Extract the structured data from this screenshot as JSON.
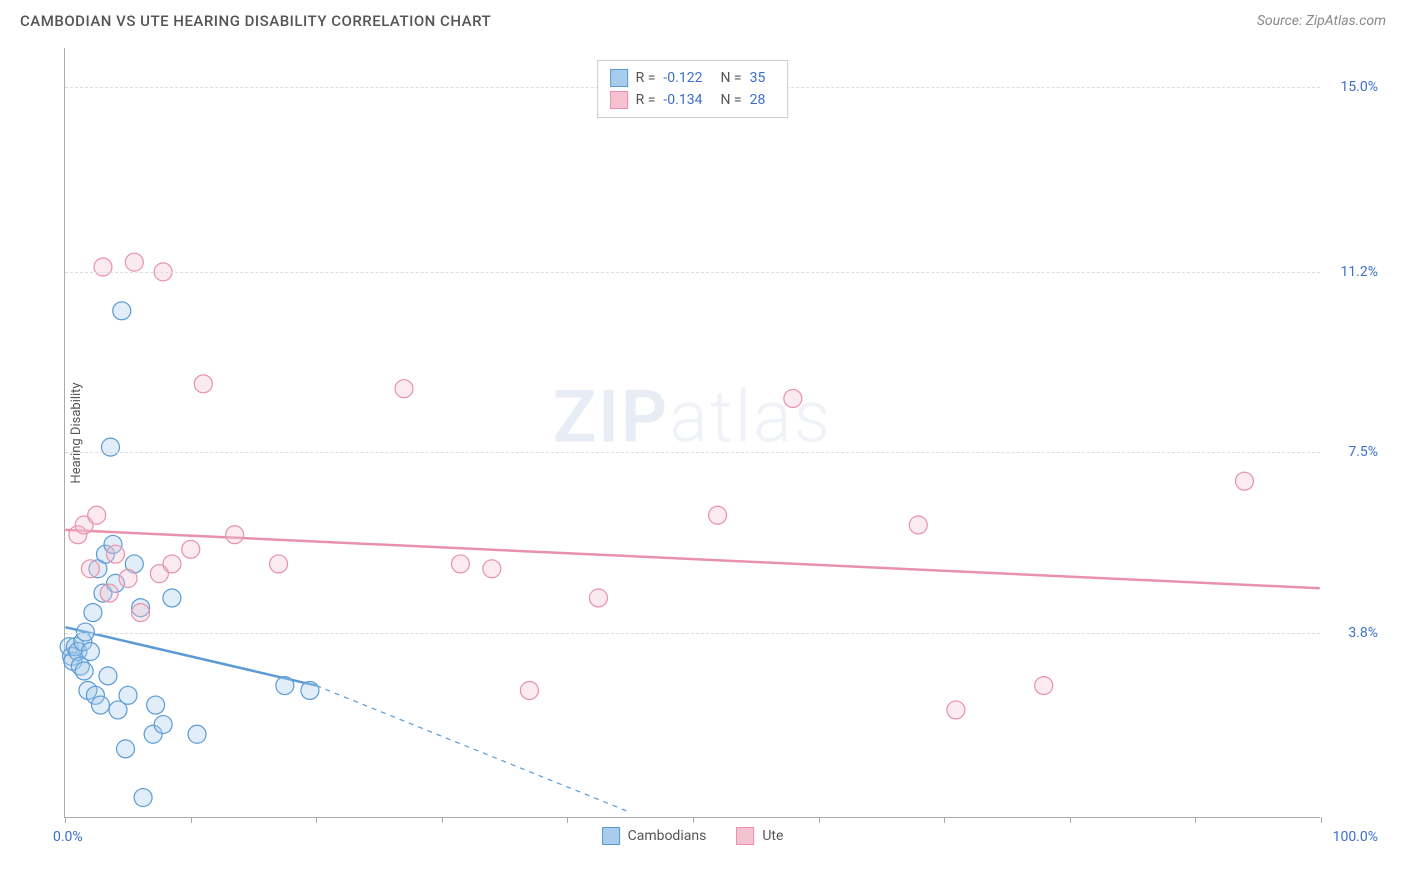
{
  "header": {
    "title": "CAMBODIAN VS UTE HEARING DISABILITY CORRELATION CHART",
    "source": "Source: ZipAtlas.com"
  },
  "watermark": {
    "bold": "ZIP",
    "light": "atlas"
  },
  "chart": {
    "type": "scatter",
    "yaxis_title": "Hearing Disability",
    "xlim": [
      0,
      100
    ],
    "ylim": [
      0,
      15.8
    ],
    "xtick_positions": [
      0,
      10,
      20,
      30,
      40,
      50,
      60,
      70,
      80,
      90,
      100
    ],
    "xlabel_min": "0.0%",
    "xlabel_max": "100.0%",
    "yticks": [
      {
        "value": 3.8,
        "label": "3.8%"
      },
      {
        "value": 7.5,
        "label": "7.5%"
      },
      {
        "value": 11.2,
        "label": "11.2%"
      },
      {
        "value": 15.0,
        "label": "15.0%"
      }
    ],
    "background_color": "#ffffff",
    "grid_color": "#dddddd",
    "marker_radius": 9,
    "marker_stroke_width": 1.2,
    "marker_fill_opacity": 0.35,
    "trend_line_width": 2.5,
    "series": [
      {
        "name": "Cambodians",
        "color": "#5b9bd5",
        "fill": "#a8cceb",
        "R": "-0.122",
        "N": "35",
        "trend": {
          "x1": 0,
          "y1": 3.9,
          "x2": 20,
          "y2": 2.7,
          "dash_extend_x": 45,
          "dash_extend_y": 0.1
        },
        "points": [
          {
            "x": 0.3,
            "y": 3.5
          },
          {
            "x": 0.5,
            "y": 3.3
          },
          {
            "x": 0.6,
            "y": 3.2
          },
          {
            "x": 0.8,
            "y": 3.5
          },
          {
            "x": 1.0,
            "y": 3.4
          },
          {
            "x": 1.2,
            "y": 3.1
          },
          {
            "x": 1.4,
            "y": 3.6
          },
          {
            "x": 1.5,
            "y": 3.0
          },
          {
            "x": 1.6,
            "y": 3.8
          },
          {
            "x": 1.8,
            "y": 2.6
          },
          {
            "x": 2.0,
            "y": 3.4
          },
          {
            "x": 2.2,
            "y": 4.2
          },
          {
            "x": 2.4,
            "y": 2.5
          },
          {
            "x": 2.6,
            "y": 5.1
          },
          {
            "x": 2.8,
            "y": 2.3
          },
          {
            "x": 3.0,
            "y": 4.6
          },
          {
            "x": 3.2,
            "y": 5.4
          },
          {
            "x": 3.4,
            "y": 2.9
          },
          {
            "x": 3.6,
            "y": 7.6
          },
          {
            "x": 3.8,
            "y": 5.6
          },
          {
            "x": 4.0,
            "y": 4.8
          },
          {
            "x": 4.2,
            "y": 2.2
          },
          {
            "x": 4.5,
            "y": 10.4
          },
          {
            "x": 5.0,
            "y": 2.5
          },
          {
            "x": 5.5,
            "y": 5.2
          },
          {
            "x": 6.0,
            "y": 4.3
          },
          {
            "x": 6.2,
            "y": 0.4
          },
          {
            "x": 7.0,
            "y": 1.7
          },
          {
            "x": 7.2,
            "y": 2.3
          },
          {
            "x": 7.8,
            "y": 1.9
          },
          {
            "x": 8.5,
            "y": 4.5
          },
          {
            "x": 10.5,
            "y": 1.7
          },
          {
            "x": 17.5,
            "y": 2.7
          },
          {
            "x": 19.5,
            "y": 2.6
          },
          {
            "x": 4.8,
            "y": 1.4
          }
        ]
      },
      {
        "name": "Ute",
        "color": "#e891ac",
        "fill": "#f4c2d1",
        "R": "-0.134",
        "N": "28",
        "trend": {
          "x1": 0,
          "y1": 5.9,
          "x2": 100,
          "y2": 4.7
        },
        "points": [
          {
            "x": 1.0,
            "y": 5.8
          },
          {
            "x": 1.5,
            "y": 6.0
          },
          {
            "x": 2.0,
            "y": 5.1
          },
          {
            "x": 2.5,
            "y": 6.2
          },
          {
            "x": 3.0,
            "y": 11.3
          },
          {
            "x": 3.5,
            "y": 4.6
          },
          {
            "x": 4.0,
            "y": 5.4
          },
          {
            "x": 5.0,
            "y": 4.9
          },
          {
            "x": 5.5,
            "y": 11.4
          },
          {
            "x": 6.0,
            "y": 4.2
          },
          {
            "x": 7.5,
            "y": 5.0
          },
          {
            "x": 7.8,
            "y": 11.2
          },
          {
            "x": 8.5,
            "y": 5.2
          },
          {
            "x": 10.0,
            "y": 5.5
          },
          {
            "x": 11.0,
            "y": 8.9
          },
          {
            "x": 13.5,
            "y": 5.8
          },
          {
            "x": 17.0,
            "y": 5.2
          },
          {
            "x": 27.0,
            "y": 8.8
          },
          {
            "x": 31.5,
            "y": 5.2
          },
          {
            "x": 34.0,
            "y": 5.1
          },
          {
            "x": 37.0,
            "y": 2.6
          },
          {
            "x": 42.5,
            "y": 4.5
          },
          {
            "x": 52.0,
            "y": 6.2
          },
          {
            "x": 58.0,
            "y": 8.6
          },
          {
            "x": 68.0,
            "y": 6.0
          },
          {
            "x": 71.0,
            "y": 2.2
          },
          {
            "x": 78.0,
            "y": 2.7
          },
          {
            "x": 94.0,
            "y": 6.9
          }
        ]
      }
    ]
  },
  "legend_top": {
    "R_label": "R =",
    "N_label": "N ="
  }
}
